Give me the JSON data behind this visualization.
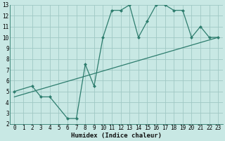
{
  "xlabel": "Humidex (Indice chaleur)",
  "bg_color": "#c8e8e4",
  "grid_color": "#a0c8c4",
  "line_color": "#2e7d6e",
  "line1_x": [
    0,
    2,
    3,
    4,
    6,
    7,
    8,
    9,
    10,
    11,
    12,
    13,
    14,
    15,
    16,
    17,
    18,
    19,
    20,
    21,
    22,
    23
  ],
  "line1_y": [
    5,
    5.5,
    4.5,
    4.5,
    2.5,
    2.5,
    7.5,
    5.5,
    10,
    12.5,
    12.5,
    13,
    10,
    11.5,
    13,
    13,
    12.5,
    12.5,
    10,
    11,
    10,
    10
  ],
  "line2_x": [
    0,
    23
  ],
  "line2_y": [
    4.5,
    10
  ],
  "xmin": -0.5,
  "xmax": 23.5,
  "ymin": 2,
  "ymax": 13,
  "xticks": [
    0,
    1,
    2,
    3,
    4,
    5,
    6,
    7,
    8,
    9,
    10,
    11,
    12,
    13,
    14,
    15,
    16,
    17,
    18,
    19,
    20,
    21,
    22,
    23
  ],
  "yticks": [
    2,
    3,
    4,
    5,
    6,
    7,
    8,
    9,
    10,
    11,
    12,
    13
  ],
  "tick_fontsize": 5.5,
  "xlabel_fontsize": 6.5,
  "marker_size": 2.5,
  "linewidth": 0.9
}
